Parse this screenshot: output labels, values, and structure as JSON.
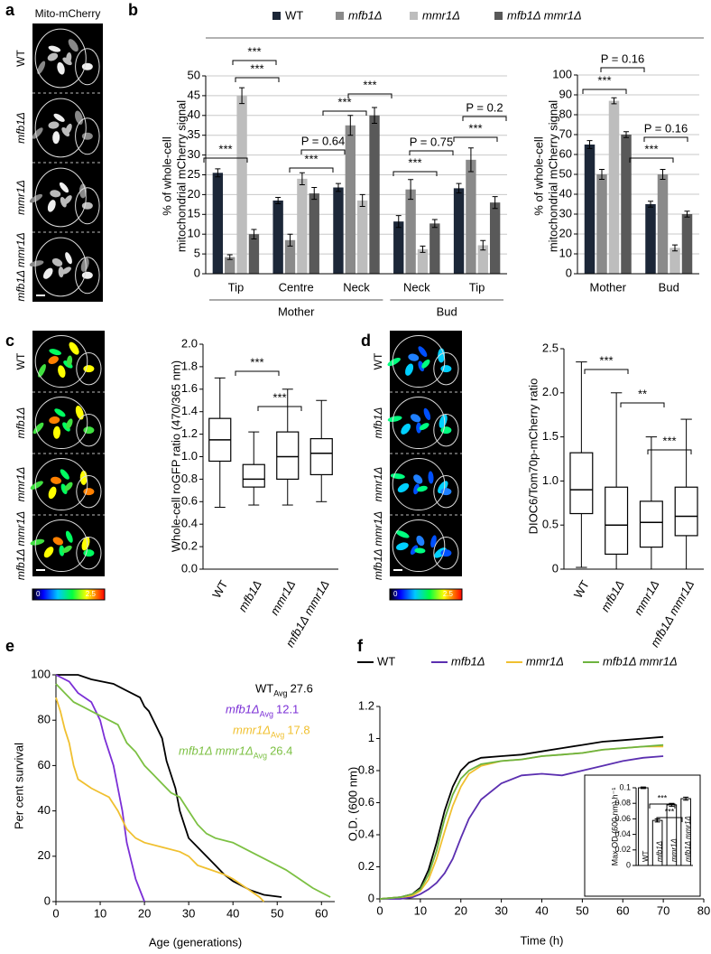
{
  "panel_labels": [
    "a",
    "b",
    "c",
    "d",
    "e",
    "f"
  ],
  "panel_a": {
    "title": "Mito-mCherry",
    "rows": [
      "WT",
      "mfb1Δ",
      "mmr1Δ",
      "mfb1Δ mmr1Δ"
    ]
  },
  "panel_c": {
    "rows": [
      "WT",
      "mfb1Δ",
      "mmr1Δ",
      "mfb1Δ mmr1Δ"
    ],
    "colorbar": [
      0,
      2.5
    ]
  },
  "panel_d": {
    "rows": [
      "WT",
      "mfb1Δ",
      "mmr1Δ",
      "mfb1Δ mmr1Δ"
    ],
    "colorbar": [
      0,
      2.5
    ]
  },
  "chart_data": [
    {
      "type": "bar",
      "y_label": [
        "% of whole-cell",
        "mitochondrial mCherry signal"
      ],
      "categories": [
        "Tip",
        "Centre",
        "Neck",
        "Neck",
        "Tip"
      ],
      "groups": [
        "Mother",
        "Bud"
      ],
      "series": [
        {
          "name": "WT",
          "color": "#1c2738",
          "values": [
            25.5,
            18.5,
            21.8,
            13.2,
            21.6
          ],
          "errors": [
            1,
            0.8,
            1,
            1.5,
            1.2
          ]
        },
        {
          "name": "mfb1Δ",
          "color": "#8a8a8a",
          "values": [
            4.2,
            8.5,
            37.5,
            21.3,
            28.8
          ],
          "errors": [
            0.6,
            1.5,
            2.5,
            2.5,
            3
          ]
        },
        {
          "name": "mmr1Δ",
          "color": "#bdbdbd",
          "values": [
            45,
            24,
            18.5,
            6.2,
            7.2
          ],
          "errors": [
            2,
            1.5,
            1.5,
            0.8,
            1.2
          ]
        },
        {
          "name": "mfb1Δ mmr1Δ",
          "color": "#595959",
          "values": [
            10,
            20.3,
            40,
            12.7,
            18
          ],
          "errors": [
            1.2,
            1.5,
            2,
            1,
            1.5
          ]
        }
      ],
      "ylim": [
        0,
        50
      ],
      "yticks": [
        0,
        5,
        10,
        15,
        20,
        25,
        30,
        35,
        40,
        45,
        50
      ],
      "grid": true,
      "annotations": [
        "***",
        "***",
        "***",
        "P = 0.64",
        "***",
        "***",
        "***",
        "P = 0.75",
        "***",
        "P = 0.2",
        "***"
      ]
    },
    {
      "type": "bar",
      "y_label": [
        "% of whole-cell",
        "mitochondrial mCherry signal"
      ],
      "categories": [
        "Mother",
        "Bud"
      ],
      "series": [
        {
          "color": "#1c2738",
          "values": [
            65,
            35
          ],
          "errors": [
            2,
            1.5
          ]
        },
        {
          "color": "#8a8a8a",
          "values": [
            50,
            50
          ],
          "errors": [
            2.5,
            2.5
          ]
        },
        {
          "color": "#bdbdbd",
          "values": [
            87,
            13
          ],
          "errors": [
            1.5,
            1.5
          ]
        },
        {
          "color": "#595959",
          "values": [
            70,
            30
          ],
          "errors": [
            1.5,
            1.5
          ]
        }
      ],
      "ylim": [
        0,
        100
      ],
      "yticks": [
        0,
        10,
        20,
        30,
        40,
        50,
        60,
        70,
        80,
        90,
        100
      ],
      "grid": true,
      "annotations": [
        "P = 0.16",
        "***",
        "P = 0.16",
        "***"
      ]
    },
    {
      "type": "box",
      "y_label": "Whole-cell roGFP ratio (470/365 nm)",
      "categories": [
        "WT",
        "mfb1Δ",
        "mmr1Δ",
        "mfb1Δ mmr1Δ"
      ],
      "boxes": [
        {
          "min": 0.55,
          "q1": 0.96,
          "median": 1.15,
          "q3": 1.34,
          "max": 1.7
        },
        {
          "min": 0.57,
          "q1": 0.73,
          "median": 0.8,
          "q3": 0.93,
          "max": 1.22
        },
        {
          "min": 0.57,
          "q1": 0.8,
          "median": 1.0,
          "q3": 1.22,
          "max": 1.6
        },
        {
          "min": 0.6,
          "q1": 0.84,
          "median": 1.03,
          "q3": 1.16,
          "max": 1.5
        }
      ],
      "ylim": [
        0,
        2
      ],
      "yticks": [
        {
          "value": 0,
          "label": "0.0"
        },
        0.2,
        0.4,
        0.6,
        0.8,
        {
          "value": 1,
          "label": "1.0"
        },
        1.2,
        1.4,
        1.6,
        1.8,
        {
          "value": 2,
          "label": "2.0"
        }
      ],
      "grid": false,
      "annotations": [
        "***",
        "***"
      ]
    },
    {
      "type": "box",
      "y_label": "DIOC6/Tom70p-mCherry ratio",
      "categories": [
        "WT",
        "mfb1Δ",
        "mmr1Δ",
        "mfb1Δ mmr1Δ"
      ],
      "boxes": [
        {
          "min": 0.02,
          "q1": 0.63,
          "median": 0.9,
          "q3": 1.32,
          "max": 2.35
        },
        {
          "min": 0,
          "q1": 0.17,
          "median": 0.5,
          "q3": 0.93,
          "max": 2.0
        },
        {
          "min": 0,
          "q1": 0.25,
          "median": 0.53,
          "q3": 0.77,
          "max": 1.5
        },
        {
          "min": 0,
          "q1": 0.38,
          "median": 0.6,
          "q3": 0.93,
          "max": 1.7
        }
      ],
      "ylim": [
        0,
        2.5
      ],
      "yticks": [
        0,
        0.5,
        {
          "value": 1,
          "label": "1.0"
        },
        1.5,
        {
          "value": 2,
          "label": "2.0"
        },
        2.5
      ],
      "grid": false,
      "annotations": [
        "***",
        "**",
        "***"
      ]
    },
    {
      "type": "line",
      "x_label": "Age (generations)",
      "y_label": "Per cent survival",
      "xlim": [
        0,
        63
      ],
      "xticks": [
        0,
        10,
        20,
        30,
        40,
        50,
        60
      ],
      "ylim": [
        0,
        100
      ],
      "yticks": [
        0,
        20,
        40,
        60,
        80,
        100
      ],
      "grid": false,
      "series": [
        {
          "name": "WT",
          "subscript": "Avg",
          "mean": 27.6,
          "color": "#000000",
          "x": [
            0,
            5,
            8,
            13,
            15,
            17,
            19,
            20,
            21,
            22,
            23,
            24,
            25,
            26,
            27,
            28,
            29,
            30,
            32,
            34,
            36,
            38,
            40,
            42,
            44,
            47,
            51
          ],
          "values": [
            100,
            100,
            98,
            96,
            94,
            92,
            90,
            86,
            84,
            80,
            76,
            72,
            62,
            56,
            50,
            40,
            34,
            28,
            24,
            20,
            16,
            12,
            9,
            7,
            5,
            3,
            2
          ]
        },
        {
          "name": "mfb1Δ",
          "subscript": "Avg",
          "mean": 12.1,
          "color": "#7b2fd6",
          "x": [
            0,
            3,
            5,
            8,
            10,
            11,
            12,
            13,
            14,
            15,
            16,
            17,
            18,
            19,
            20
          ],
          "values": [
            100,
            97,
            92,
            88,
            80,
            72,
            66,
            60,
            50,
            40,
            26,
            18,
            10,
            5,
            0
          ]
        },
        {
          "name": "mmr1Δ",
          "subscript": "Avg",
          "mean": 17.8,
          "color": "#f0c030",
          "x": [
            0,
            1,
            2,
            3,
            4,
            5,
            8,
            10,
            12,
            14,
            16,
            18,
            20,
            24,
            28,
            30,
            32,
            35,
            38,
            40,
            43,
            46,
            47
          ],
          "values": [
            90,
            84,
            76,
            70,
            60,
            54,
            50,
            48,
            46,
            40,
            32,
            28,
            26,
            24,
            22,
            20,
            16,
            14,
            12,
            10,
            6,
            2,
            0
          ]
        },
        {
          "name": "mfb1Δ mmr1Δ",
          "subscript": "Avg",
          "mean": 26.4,
          "color": "#7cc043",
          "x": [
            0,
            2,
            4,
            6,
            8,
            10,
            12,
            14,
            16,
            18,
            20,
            22,
            24,
            26,
            28,
            30,
            32,
            34,
            36,
            40,
            44,
            48,
            52,
            55,
            58,
            60,
            62
          ],
          "values": [
            96,
            92,
            88,
            86,
            84,
            82,
            80,
            78,
            70,
            66,
            60,
            56,
            52,
            48,
            46,
            40,
            34,
            30,
            28,
            26,
            22,
            18,
            14,
            10,
            6,
            4,
            2
          ]
        }
      ]
    },
    {
      "type": "line",
      "x_label": "Time (h)",
      "y_label": "O.D. (600 nm)",
      "xlim": [
        0,
        80
      ],
      "xticks": [
        0,
        10,
        20,
        30,
        40,
        50,
        60,
        70,
        80
      ],
      "ylim": [
        0,
        1.2
      ],
      "yticks": [
        0,
        0.2,
        0.4,
        0.6,
        0.8,
        1,
        1.2
      ],
      "grid": false,
      "x": [
        0,
        5,
        8,
        10,
        12,
        14,
        16,
        18,
        20,
        22,
        25,
        30,
        35,
        40,
        45,
        50,
        55,
        60,
        65,
        70
      ],
      "series": [
        {
          "name": "WT",
          "color": "#000000",
          "values": [
            0,
            0.01,
            0.03,
            0.07,
            0.18,
            0.35,
            0.55,
            0.7,
            0.8,
            0.85,
            0.88,
            0.89,
            0.9,
            0.92,
            0.94,
            0.96,
            0.98,
            0.99,
            1.0,
            1.01
          ]
        },
        {
          "name": "mfb1Δ",
          "color": "#5b2fb0",
          "values": [
            0,
            0,
            0.01,
            0.03,
            0.06,
            0.1,
            0.16,
            0.25,
            0.38,
            0.5,
            0.62,
            0.72,
            0.77,
            0.78,
            0.77,
            0.8,
            0.83,
            0.86,
            0.88,
            0.89
          ]
        },
        {
          "name": "mmr1Δ",
          "color": "#f0c030",
          "values": [
            0,
            0.01,
            0.02,
            0.05,
            0.12,
            0.25,
            0.42,
            0.58,
            0.7,
            0.78,
            0.83,
            0.86,
            0.87,
            0.89,
            0.9,
            0.91,
            0.93,
            0.94,
            0.95,
            0.95
          ]
        },
        {
          "name": "mfb1Δ mmr1Δ",
          "color": "#6db33f",
          "values": [
            0,
            0.01,
            0.03,
            0.06,
            0.15,
            0.3,
            0.5,
            0.65,
            0.75,
            0.8,
            0.84,
            0.86,
            0.87,
            0.89,
            0.9,
            0.91,
            0.93,
            0.94,
            0.95,
            0.96
          ]
        }
      ]
    },
    {
      "type": "bar",
      "y_label": "Max OD (600 nm) h⁻¹",
      "categories": [
        "WT",
        "mfb1Δ",
        "mmr1Δ",
        "mfb1Δ mmr1Δ"
      ],
      "color": "#ffffff",
      "values": [
        0.1,
        0.058,
        0.078,
        0.086
      ],
      "errors": [
        0.001,
        0.002,
        0.002,
        0.002
      ],
      "ylim": [
        0,
        0.1
      ],
      "yticks": [
        0,
        0.02,
        0.04,
        0.06,
        0.08,
        0.1
      ],
      "grid": false,
      "annotations": [
        "***",
        "***"
      ]
    }
  ]
}
